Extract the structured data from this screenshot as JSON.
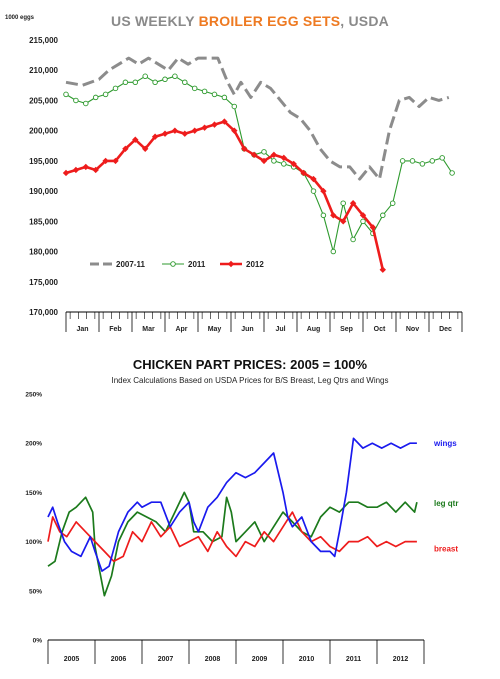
{
  "page_title_parts": {
    "prefix": "US WEEKLY ",
    "highlight": "BROILER EGG SETS",
    "suffix": ", USDA"
  },
  "chart_data": [
    {
      "type": "line",
      "title": "US WEEKLY BROILER EGG SETS, USDA",
      "ylabel": "1000 eggs",
      "ylim": [
        170000,
        215000
      ],
      "yticks": [
        170000,
        175000,
        180000,
        185000,
        190000,
        195000,
        200000,
        205000,
        210000,
        215000
      ],
      "ytick_labels": [
        "170,000",
        "175,000",
        "180,000",
        "185,000",
        "190,000",
        "195,000",
        "200,000",
        "205,000",
        "210,000",
        "215,000"
      ],
      "xlim": [
        0,
        12
      ],
      "categories": [
        "Jan",
        "Feb",
        "Mar",
        "Apr",
        "May",
        "Jun",
        "Jul",
        "Aug",
        "Sep",
        "Oct",
        "Nov",
        "Dec"
      ],
      "legend_position": "bottom-left",
      "colors": {
        "2007-11": "#8c8c8c",
        "2011": "#2e9a2e",
        "2012": "#ee1c1c"
      },
      "series": [
        {
          "name": "2007-11",
          "style": "dashed",
          "x": [
            0.0,
            0.5,
            1.0,
            1.3,
            1.6,
            1.9,
            2.2,
            2.5,
            2.8,
            3.1,
            3.4,
            3.7,
            4.0,
            4.3,
            4.6,
            4.9,
            5.1,
            5.3,
            5.6,
            5.9,
            6.2,
            6.5,
            6.8,
            7.1,
            7.4,
            7.7,
            8.0,
            8.3,
            8.6,
            8.9,
            9.2,
            9.5,
            9.8,
            10.1,
            10.4,
            10.7,
            11.0,
            11.3,
            11.6
          ],
          "y": [
            208000,
            207500,
            208500,
            210000,
            211000,
            212000,
            211000,
            212000,
            211000,
            210000,
            212000,
            211000,
            212000,
            212000,
            212000,
            208000,
            206000,
            208000,
            205500,
            208000,
            207000,
            205000,
            203000,
            202000,
            200000,
            197000,
            195000,
            194000,
            194000,
            192000,
            194000,
            192000,
            200000,
            205000,
            205500,
            204000,
            205500,
            205000,
            205500
          ]
        },
        {
          "name": "2011",
          "style": "marker-open-circle",
          "x": [
            0.0,
            0.3,
            0.6,
            0.9,
            1.2,
            1.5,
            1.8,
            2.1,
            2.4,
            2.7,
            3.0,
            3.3,
            3.6,
            3.9,
            4.2,
            4.5,
            4.8,
            5.1,
            5.4,
            5.7,
            6.0,
            6.3,
            6.6,
            6.9,
            7.2,
            7.5,
            7.8,
            8.1,
            8.4,
            8.7,
            9.0,
            9.3,
            9.6,
            9.9,
            10.2,
            10.5,
            10.8,
            11.1,
            11.4,
            11.7
          ],
          "y": [
            206000,
            205000,
            204500,
            205500,
            206000,
            207000,
            208000,
            208000,
            209000,
            208000,
            208500,
            209000,
            208000,
            207000,
            206500,
            206000,
            205500,
            204000,
            197000,
            196000,
            196500,
            195000,
            194500,
            194000,
            193000,
            190000,
            186000,
            180000,
            188000,
            182000,
            185000,
            183000,
            186000,
            188000,
            195000,
            195000,
            194500,
            195000,
            195500,
            193000
          ]
        },
        {
          "name": "2012",
          "style": "marker-filled-diamond",
          "x": [
            0.0,
            0.3,
            0.6,
            0.9,
            1.2,
            1.5,
            1.8,
            2.1,
            2.4,
            2.7,
            3.0,
            3.3,
            3.6,
            3.9,
            4.2,
            4.5,
            4.8,
            5.1,
            5.4,
            5.7,
            6.0,
            6.3,
            6.6,
            6.9,
            7.2,
            7.5,
            7.8,
            8.1,
            8.4,
            8.7,
            9.0,
            9.3,
            9.6
          ],
          "y": [
            193000,
            193500,
            194000,
            193500,
            195000,
            195000,
            197000,
            198500,
            197000,
            199000,
            199500,
            200000,
            199500,
            200000,
            200500,
            201000,
            201500,
            200000,
            197000,
            196000,
            195000,
            196000,
            195500,
            194500,
            193000,
            192000,
            190000,
            186000,
            185000,
            188000,
            186000,
            184000,
            177000
          ]
        }
      ]
    },
    {
      "type": "line",
      "title": "CHICKEN PART PRICES: 2005 = 100%",
      "subtitle": "Index Calculations Based on USDA Prices for B/S Breast, Leg Qtrs and Wings",
      "ylim": [
        0,
        250
      ],
      "yticks": [
        0,
        50,
        100,
        150,
        200,
        250
      ],
      "ytick_labels": [
        "0%",
        "50%",
        "100%",
        "150%",
        "200%",
        "250%"
      ],
      "xlim": [
        0,
        8
      ],
      "categories": [
        "2005",
        "2006",
        "2007",
        "2008",
        "2009",
        "2010",
        "2011",
        "2012"
      ],
      "legend_position": "right, labels at line ends",
      "colors": {
        "wings": "#1a1aee",
        "leg qtr": "#1c7a1c",
        "breast": "#ee1c1c"
      },
      "series": [
        {
          "name": "wings",
          "x": [
            0.0,
            0.1,
            0.2,
            0.35,
            0.5,
            0.7,
            0.9,
            1.0,
            1.15,
            1.3,
            1.5,
            1.7,
            1.9,
            2.0,
            2.2,
            2.4,
            2.6,
            2.8,
            3.0,
            3.1,
            3.2,
            3.4,
            3.6,
            3.8,
            4.0,
            4.2,
            4.4,
            4.6,
            4.8,
            5.0,
            5.1,
            5.2,
            5.4,
            5.6,
            5.8,
            6.0,
            6.1,
            6.2,
            6.35,
            6.5,
            6.7,
            6.9,
            7.1,
            7.3,
            7.5,
            7.7,
            7.85
          ],
          "y": [
            125,
            135,
            120,
            100,
            90,
            85,
            105,
            90,
            70,
            75,
            110,
            130,
            140,
            135,
            140,
            140,
            115,
            130,
            140,
            120,
            110,
            135,
            145,
            160,
            170,
            165,
            170,
            180,
            190,
            150,
            125,
            115,
            125,
            100,
            90,
            90,
            85,
            110,
            150,
            205,
            195,
            200,
            195,
            200,
            195,
            200,
            200
          ]
        },
        {
          "name": "leg qtr",
          "x": [
            0.0,
            0.15,
            0.3,
            0.45,
            0.6,
            0.8,
            0.95,
            1.0,
            1.1,
            1.2,
            1.35,
            1.5,
            1.7,
            1.9,
            2.1,
            2.3,
            2.5,
            2.7,
            2.9,
            3.0,
            3.1,
            3.3,
            3.5,
            3.7,
            3.8,
            3.9,
            4.0,
            4.2,
            4.4,
            4.6,
            4.8,
            5.0,
            5.2,
            5.4,
            5.6,
            5.8,
            6.0,
            6.2,
            6.4,
            6.6,
            6.8,
            7.0,
            7.2,
            7.4,
            7.6,
            7.8,
            7.85
          ],
          "y": [
            75,
            80,
            110,
            130,
            135,
            145,
            130,
            95,
            70,
            45,
            65,
            100,
            120,
            130,
            125,
            120,
            110,
            130,
            150,
            140,
            110,
            110,
            100,
            105,
            145,
            130,
            100,
            110,
            120,
            100,
            115,
            130,
            120,
            110,
            105,
            125,
            135,
            130,
            140,
            140,
            135,
            135,
            140,
            130,
            140,
            130,
            140
          ]
        },
        {
          "name": "breast",
          "x": [
            0.0,
            0.1,
            0.25,
            0.4,
            0.6,
            0.8,
            1.0,
            1.2,
            1.4,
            1.6,
            1.8,
            2.0,
            2.2,
            2.4,
            2.6,
            2.8,
            3.0,
            3.2,
            3.4,
            3.6,
            3.8,
            4.0,
            4.2,
            4.4,
            4.6,
            4.8,
            5.0,
            5.2,
            5.4,
            5.6,
            5.8,
            6.0,
            6.2,
            6.4,
            6.6,
            6.8,
            7.0,
            7.2,
            7.4,
            7.6,
            7.8,
            7.85
          ],
          "y": [
            100,
            125,
            110,
            105,
            120,
            110,
            100,
            90,
            80,
            85,
            110,
            100,
            120,
            105,
            115,
            95,
            100,
            105,
            90,
            110,
            95,
            85,
            100,
            95,
            110,
            100,
            115,
            130,
            110,
            100,
            105,
            95,
            90,
            100,
            100,
            105,
            95,
            100,
            95,
            100,
            100,
            100
          ]
        }
      ]
    }
  ]
}
